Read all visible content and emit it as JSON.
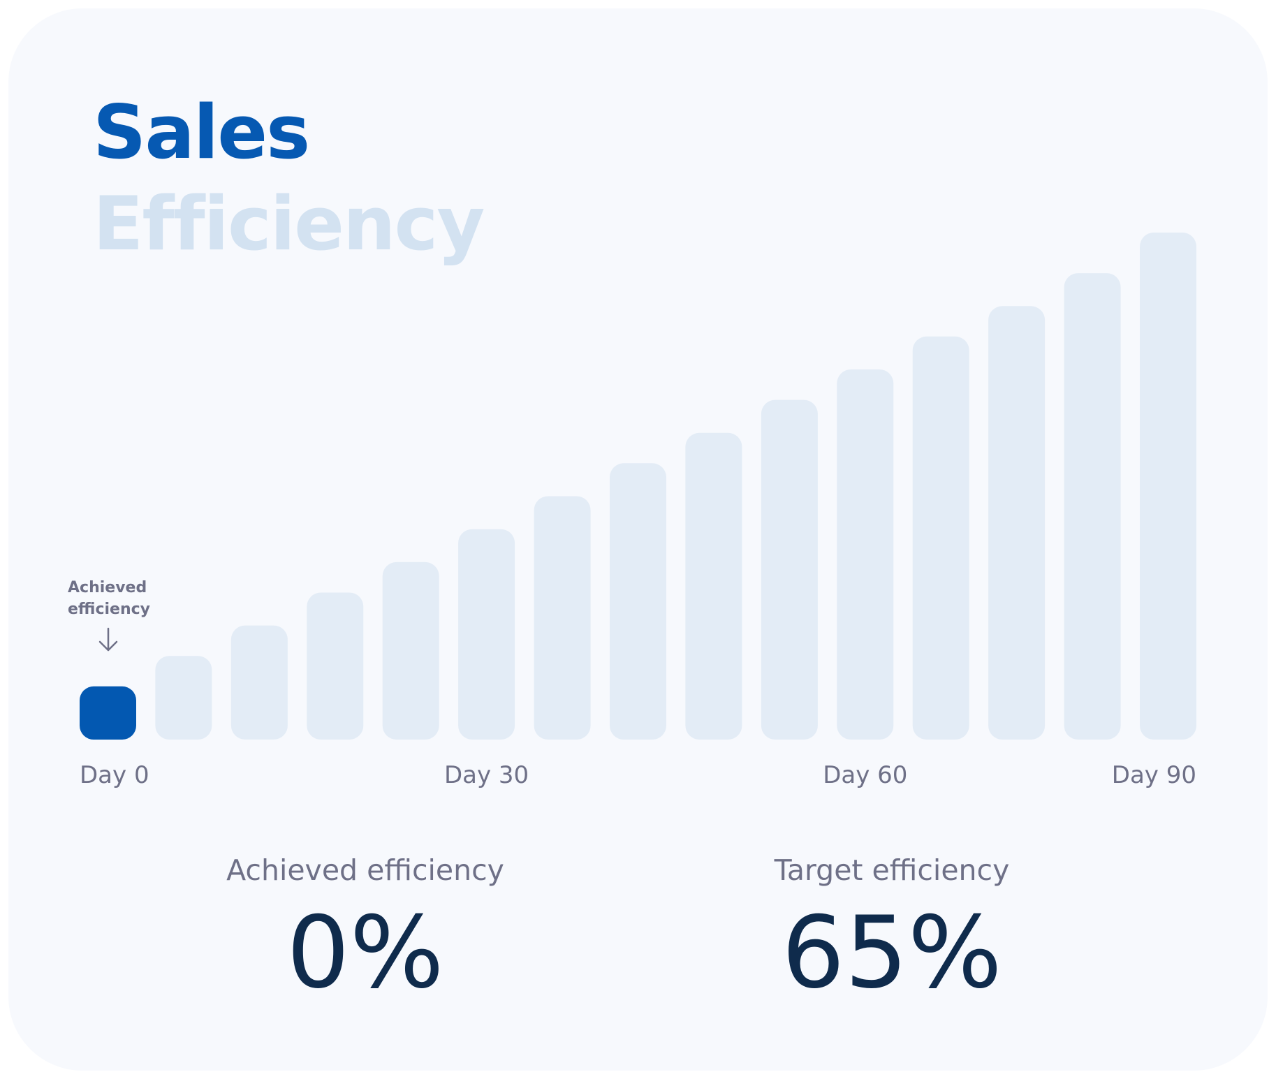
{
  "colors": {
    "highlight": "#0358b1",
    "muted_bar": "#e3ecf6",
    "title_main": "#0659b2",
    "title_sub": "#d3e2f1",
    "axis_text": "#6e7087",
    "value_text": "#0f2b4c"
  },
  "header": {
    "title": "Sales",
    "subtitle": "Efficiency"
  },
  "callout": {
    "line1": "Achieved",
    "line2": "efficiency",
    "icon": "arrow-down-icon"
  },
  "chart_data": {
    "type": "bar",
    "series": [
      {
        "values": [
          10.5,
          16.5,
          22.5,
          29,
          35,
          41.5,
          48,
          54.5,
          60.5,
          67,
          73,
          79.5,
          85.5,
          92,
          100
        ]
      }
    ],
    "highlight_index": 0,
    "x_ticks": [
      "Day 0",
      "Day 30",
      "Day 60",
      "Day 90"
    ],
    "x_tick_indices": [
      0,
      5,
      10,
      14
    ],
    "ylim": [
      0,
      100
    ],
    "grid": false,
    "legend": "none"
  },
  "stats": {
    "achieved": {
      "label": "Achieved efficiency",
      "value": "0%"
    },
    "target": {
      "label": "Target efficiency",
      "value": "65%"
    }
  }
}
